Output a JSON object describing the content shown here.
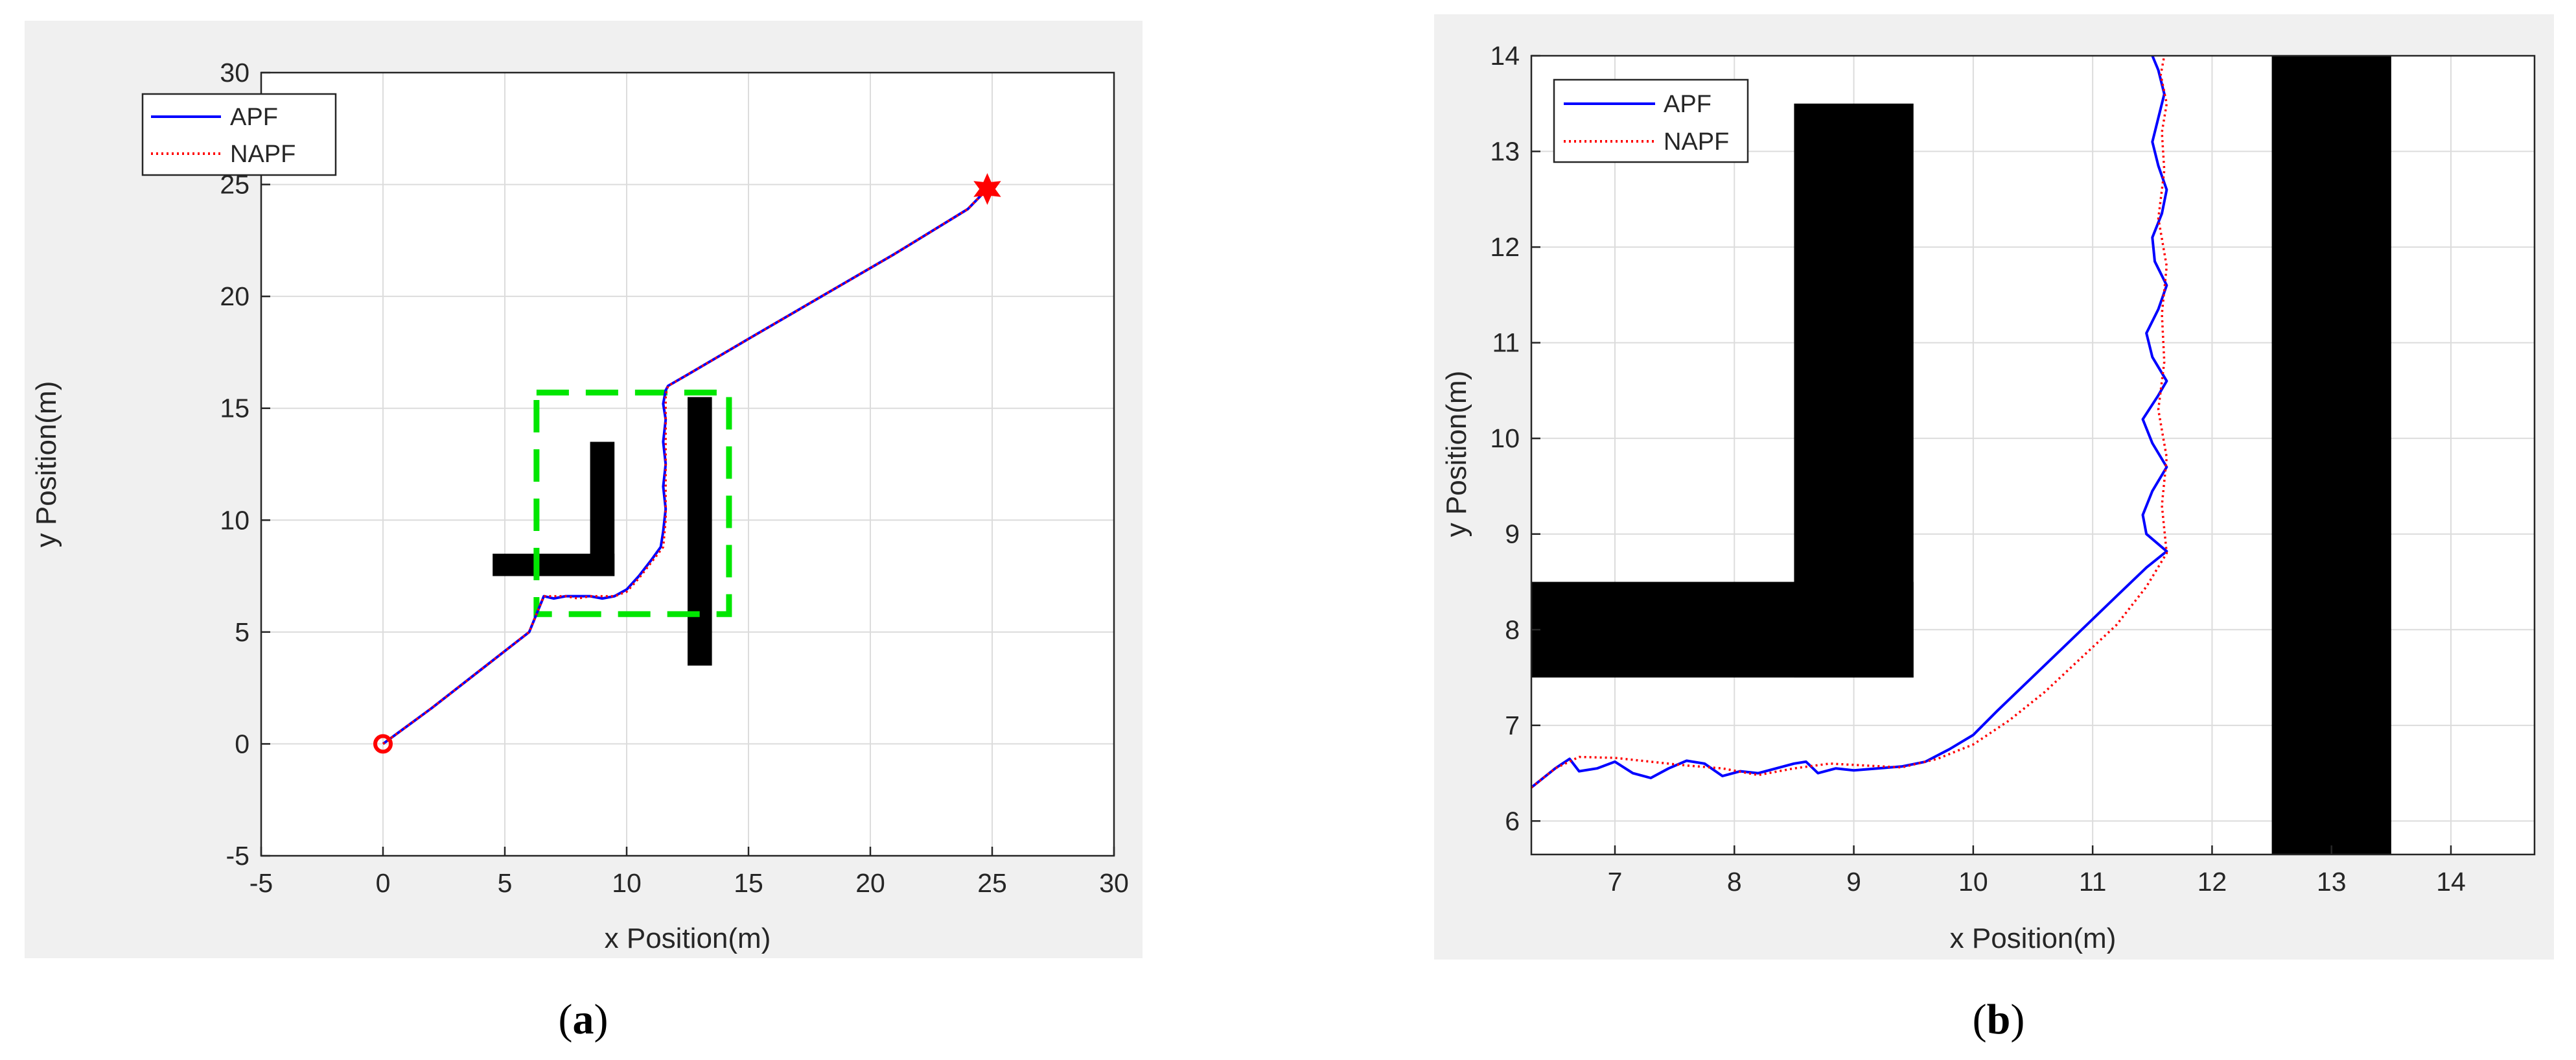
{
  "chart_data": [
    {
      "type": "line",
      "panel": "a",
      "caption_letter": "a",
      "xlabel": "x Position(m)",
      "ylabel": "y Position(m)",
      "xlim": [
        -5,
        30
      ],
      "ylim": [
        -5,
        30
      ],
      "xticks": [
        -5,
        0,
        5,
        10,
        15,
        20,
        25,
        30
      ],
      "yticks": [
        -5,
        0,
        5,
        10,
        15,
        20,
        25,
        30
      ],
      "grid": true,
      "legend_location": "top-left",
      "series": [
        {
          "name": "APF",
          "color": "#0000ff",
          "style": "solid",
          "x": [
            0,
            2,
            4,
            6,
            6.6,
            7,
            7.5,
            8,
            8.5,
            9,
            9.5,
            10,
            10.5,
            11,
            11.4,
            11.5,
            11.6,
            11.5,
            11.6,
            11.5,
            11.6,
            11.5,
            11.6,
            11.7,
            12.5,
            15,
            18,
            21,
            24,
            24.8
          ],
          "y": [
            0,
            1.6,
            3.3,
            5.0,
            6.6,
            6.5,
            6.6,
            6.6,
            6.6,
            6.5,
            6.6,
            6.9,
            7.5,
            8.2,
            8.8,
            9.5,
            10.5,
            11.5,
            12.5,
            13.5,
            14.5,
            15.2,
            15.8,
            16.0,
            16.5,
            18.1,
            20.0,
            21.9,
            23.9,
            24.8
          ]
        },
        {
          "name": "NAPF",
          "color": "#ff0000",
          "style": "dotted",
          "x": [
            0,
            2,
            4,
            6,
            6.6,
            7,
            7.5,
            8,
            8.5,
            9,
            9.5,
            10,
            10.5,
            11,
            11.5,
            11.6,
            11.6,
            11.6,
            11.6,
            11.6,
            11.7,
            12.5,
            15,
            18,
            21,
            24,
            24.8
          ],
          "y": [
            0,
            1.6,
            3.3,
            5.0,
            6.6,
            6.6,
            6.6,
            6.5,
            6.6,
            6.6,
            6.6,
            6.8,
            7.4,
            8.1,
            8.8,
            10.0,
            11.5,
            13.0,
            14.5,
            15.6,
            16.0,
            16.5,
            18.1,
            20.0,
            21.9,
            23.9,
            24.8
          ]
        }
      ],
      "obstacles": [
        {
          "x0": 4.5,
          "x1": 9.5,
          "y0": 7.5,
          "y1": 8.5
        },
        {
          "x0": 8.5,
          "x1": 9.5,
          "y0": 7.5,
          "y1": 13.5
        },
        {
          "x0": 12.5,
          "x1": 13.5,
          "y0": 3.5,
          "y1": 15.5
        }
      ],
      "zoom_box": {
        "x0": 6.3,
        "x1": 14.2,
        "y0": 5.8,
        "y1": 15.7,
        "color": "#00e600"
      },
      "start": {
        "x": 0,
        "y": 0,
        "marker": "circle",
        "color": "#ff0000"
      },
      "goal": {
        "x": 24.8,
        "y": 24.8,
        "marker": "hexagram",
        "color": "#ff0000"
      }
    },
    {
      "type": "line",
      "panel": "b",
      "caption_letter": "b",
      "xlabel": "x Position(m)",
      "ylabel": "y Position(m)",
      "xlim": [
        6.3,
        14.7
      ],
      "ylim": [
        5.65,
        14
      ],
      "xticks": [
        7,
        8,
        9,
        10,
        11,
        12,
        13,
        14
      ],
      "yticks": [
        6,
        7,
        8,
        9,
        10,
        11,
        12,
        13,
        14
      ],
      "grid": true,
      "legend_location": "top-left",
      "series": [
        {
          "name": "APF",
          "color": "#0000ff",
          "style": "solid",
          "x": [
            6.3,
            6.5,
            6.62,
            6.7,
            6.85,
            7.0,
            7.15,
            7.3,
            7.45,
            7.6,
            7.75,
            7.9,
            8.05,
            8.2,
            8.35,
            8.5,
            8.6,
            8.7,
            8.85,
            9.0,
            9.2,
            9.4,
            9.6,
            9.8,
            10.0,
            10.2,
            10.45,
            10.7,
            10.95,
            11.2,
            11.45,
            11.62,
            11.45,
            11.42,
            11.5,
            11.62,
            11.5,
            11.42,
            11.55,
            11.62,
            11.5,
            11.45,
            11.55,
            11.62,
            11.52,
            11.5,
            11.58,
            11.62,
            11.55,
            11.5,
            11.55,
            11.6,
            11.55,
            11.5
          ],
          "y": [
            6.35,
            6.55,
            6.65,
            6.52,
            6.55,
            6.62,
            6.5,
            6.45,
            6.55,
            6.63,
            6.6,
            6.47,
            6.52,
            6.5,
            6.55,
            6.6,
            6.62,
            6.5,
            6.55,
            6.53,
            6.55,
            6.57,
            6.62,
            6.75,
            6.9,
            7.15,
            7.45,
            7.75,
            8.05,
            8.35,
            8.65,
            8.82,
            9.0,
            9.2,
            9.45,
            9.7,
            9.95,
            10.2,
            10.45,
            10.6,
            10.85,
            11.1,
            11.35,
            11.6,
            11.85,
            12.1,
            12.35,
            12.6,
            12.85,
            13.1,
            13.35,
            13.6,
            13.85,
            14.0
          ]
        },
        {
          "name": "NAPF",
          "color": "#ff0000",
          "style": "dotted",
          "x": [
            6.3,
            6.5,
            6.7,
            7.0,
            7.3,
            7.6,
            7.9,
            8.2,
            8.5,
            8.8,
            9.1,
            9.4,
            9.7,
            10.0,
            10.3,
            10.6,
            10.9,
            11.2,
            11.45,
            11.62,
            11.58,
            11.62,
            11.55,
            11.6,
            11.58,
            11.62,
            11.55,
            11.6,
            11.58,
            11.62,
            11.57,
            11.6
          ],
          "y": [
            6.35,
            6.55,
            6.67,
            6.66,
            6.62,
            6.58,
            6.55,
            6.48,
            6.55,
            6.6,
            6.58,
            6.56,
            6.65,
            6.8,
            7.05,
            7.35,
            7.7,
            8.05,
            8.45,
            8.8,
            9.3,
            9.8,
            10.3,
            10.8,
            11.3,
            11.8,
            12.3,
            12.8,
            13.2,
            13.5,
            13.8,
            14.0
          ]
        }
      ],
      "obstacles": [
        {
          "x0": 4.5,
          "x1": 9.5,
          "y0": 7.5,
          "y1": 8.5
        },
        {
          "x0": 8.5,
          "x1": 9.5,
          "y0": 7.5,
          "y1": 13.5
        },
        {
          "x0": 12.5,
          "x1": 13.5,
          "y0": 3.5,
          "y1": 15.5
        }
      ]
    }
  ]
}
